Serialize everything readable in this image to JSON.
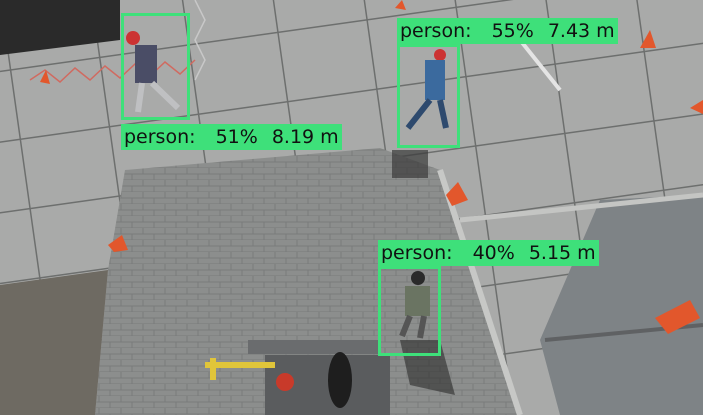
{
  "detections": [
    {
      "class": "person",
      "confidence": "51%",
      "distance": "8.19 m"
    },
    {
      "class": "person",
      "confidence": "55%",
      "distance": "7.43 m"
    },
    {
      "class": "person",
      "confidence": "40%",
      "distance": "5.15 m"
    }
  ],
  "colors": {
    "box": "#3ee07a",
    "label_text": "#111111"
  }
}
